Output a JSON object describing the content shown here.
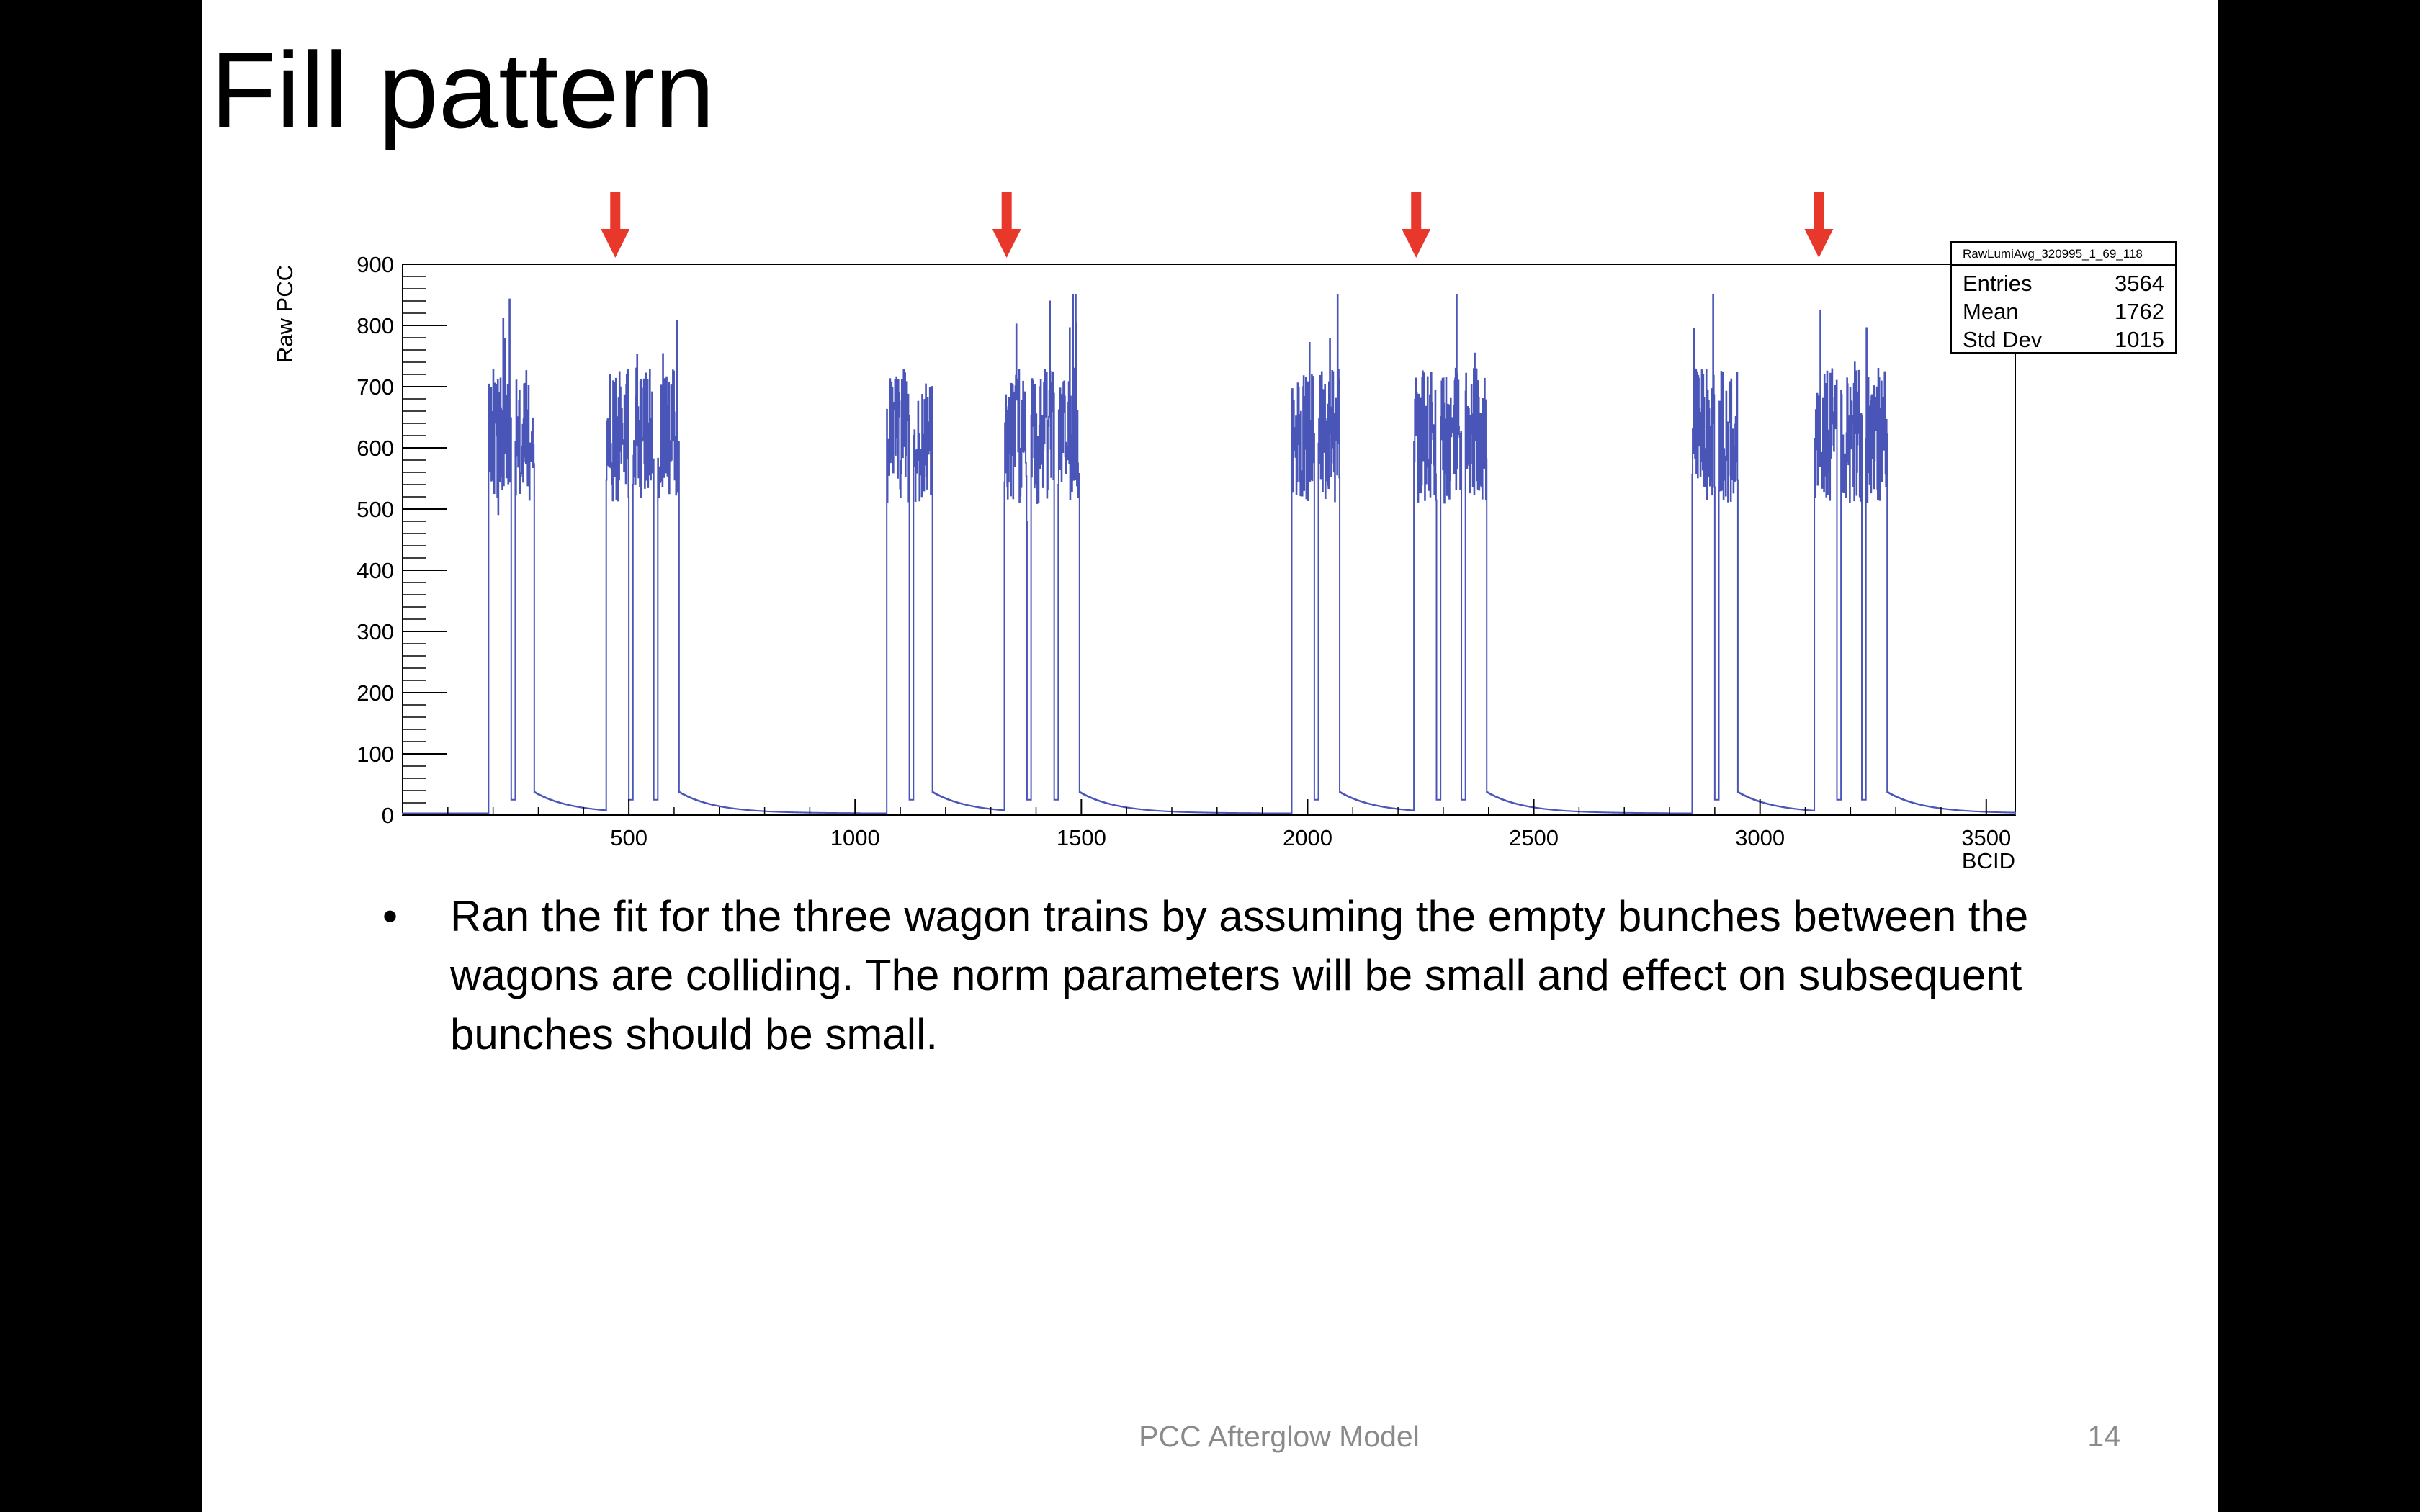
{
  "slide": {
    "title": "Fill pattern",
    "bullet": "Ran the fit for the three wagon trains by assuming the empty bunches between the wagons are colliding. The norm parameters will be small and effect on subsequent bunches should be small.",
    "footer": "PCC Afterglow Model",
    "page_number": "14"
  },
  "colors": {
    "background": "#000000",
    "slide": "#ffffff",
    "series": "#4a55b8",
    "arrow": "#e8382c",
    "axis": "#000000",
    "footer_text": "#8a8a8a"
  },
  "chart_data": {
    "type": "histogram",
    "xlabel": "BCID",
    "ylabel": "Raw PCC",
    "xlim": [
      0,
      3564
    ],
    "ylim": [
      0,
      900
    ],
    "x_ticks": [
      500,
      1000,
      1500,
      2000,
      2500,
      3000,
      3500
    ],
    "y_ticks": [
      0,
      100,
      200,
      300,
      400,
      500,
      600,
      700,
      800,
      900
    ],
    "grid": false,
    "stats_box": {
      "title": "RawLumiAvg_320995_1_69_118",
      "rows": [
        {
          "label": "Entries",
          "value": "3564"
        },
        {
          "label": "Mean",
          "value": "1762"
        },
        {
          "label": "Std Dev",
          "value": "1015"
        }
      ]
    },
    "arrow_markers_bcid": [
      470,
      1335,
      2240,
      3130
    ],
    "trains": [
      {
        "start": 190,
        "end": 290,
        "gaps": [
          [
            240,
            248
          ]
        ]
      },
      {
        "start": 450,
        "end": 610,
        "gaps": [
          [
            500,
            508
          ],
          [
            555,
            563
          ]
        ]
      },
      {
        "start": 1070,
        "end": 1170,
        "gaps": [
          [
            1120,
            1128
          ]
        ]
      },
      {
        "start": 1330,
        "end": 1495,
        "gaps": [
          [
            1380,
            1388
          ],
          [
            1440,
            1448
          ]
        ]
      },
      {
        "start": 1965,
        "end": 2070,
        "gaps": [
          [
            2015,
            2023
          ]
        ]
      },
      {
        "start": 2235,
        "end": 2395,
        "gaps": [
          [
            2285,
            2293
          ],
          [
            2340,
            2348
          ]
        ]
      },
      {
        "start": 2850,
        "end": 2950,
        "gaps": [
          [
            2900,
            2908
          ]
        ]
      },
      {
        "start": 3120,
        "end": 3280,
        "gaps": [
          [
            3170,
            3178
          ],
          [
            3225,
            3233
          ]
        ]
      }
    ],
    "filled_level": {
      "mean": 620,
      "min": 480,
      "max": 850
    },
    "afterglow": {
      "initial": 35,
      "decay_bcid": 80,
      "floor": 3
    }
  }
}
